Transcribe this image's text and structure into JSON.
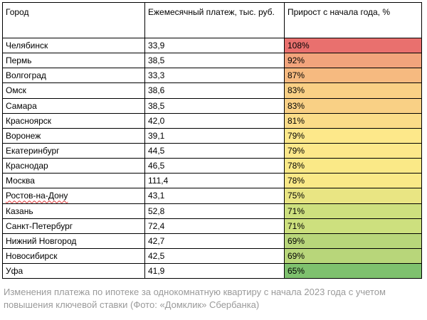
{
  "table": {
    "headers": {
      "city": "Город",
      "payment": "Ежемесячный платеж, тыс. руб.",
      "growth": "Прирост с начала года, %"
    },
    "rows": [
      {
        "city": "Челябинск",
        "payment": "33,9",
        "growth": "108%",
        "color": "#e9706e"
      },
      {
        "city": "Пермь",
        "payment": "38,5",
        "growth": "92%",
        "color": "#f2a47c"
      },
      {
        "city": "Волгоград",
        "payment": "33,3",
        "growth": "87%",
        "color": "#f6ba80"
      },
      {
        "city": "Омск",
        "payment": "38,6",
        "growth": "83%",
        "color": "#f9d085"
      },
      {
        "city": "Самара",
        "payment": "38,5",
        "growth": "83%",
        "color": "#f9d085"
      },
      {
        "city": "Красноярск",
        "payment": "42,0",
        "growth": "81%",
        "color": "#fbdc88"
      },
      {
        "city": "Воронеж",
        "payment": "39,1",
        "growth": "79%",
        "color": "#fde88a"
      },
      {
        "city": "Екатеринбург",
        "payment": "44,5",
        "growth": "79%",
        "color": "#fde88a"
      },
      {
        "city": "Краснодар",
        "payment": "46,5",
        "growth": "78%",
        "color": "#fae987"
      },
      {
        "city": "Москва",
        "payment": "111,4",
        "growth": "78%",
        "color": "#fae987"
      },
      {
        "city": "Ростов-на-Дону",
        "payment": "43,1",
        "growth": "75%",
        "color": "#e9e583"
      },
      {
        "city": "Казань",
        "payment": "52,8",
        "growth": "71%",
        "color": "#cde07e"
      },
      {
        "city": "Санкт-Петербург",
        "payment": "72,4",
        "growth": "71%",
        "color": "#cde07e"
      },
      {
        "city": "Нижний Новгород",
        "payment": "42,7",
        "growth": "69%",
        "color": "#b8d67a"
      },
      {
        "city": "Новосибирск",
        "payment": "42,5",
        "growth": "69%",
        "color": "#b8d67a"
      },
      {
        "city": "Уфа",
        "payment": "41,9",
        "growth": "65%",
        "color": "#7ec16e"
      }
    ]
  },
  "caption": "Изменения платежа по ипотеке за однокомнатную квартиру с начала 2023 года с учетом повышения ключевой ставки (Фото: «Домклик» Сбербанка)"
}
